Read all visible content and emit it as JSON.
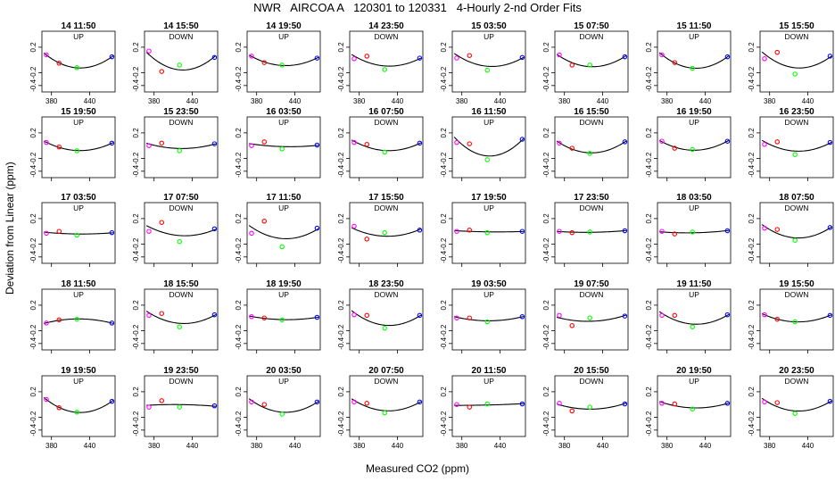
{
  "title": "NWR   AIRCOA A   120301 to 120331   4-Hourly 2-nd Order Fits",
  "xlabel": "Measured CO2 (ppm)",
  "ylabel": "Deviation from Linear (ppm)",
  "colors": {
    "curve": "#000000",
    "point_1": "#ff00ff",
    "point_2": "#ff0000",
    "point_3": "#00ff00",
    "point_4": "#0000ff"
  },
  "chart_data": {
    "type": "scatter",
    "layout": "grid of 5 rows x 8 columns of small panels",
    "xlim": [
      365,
      480
    ],
    "ylim": [
      -0.5,
      0.45
    ],
    "xticks": [
      380,
      440
    ],
    "yticks": [
      -0.4,
      -0.2,
      0.2
    ],
    "ytick_labels": [
      "-0.4",
      "-0.2",
      "0.2"
    ],
    "x_tick_rows": [
      1,
      5
    ],
    "standard_x": [
      372,
      392,
      420,
      475
    ],
    "panels": [
      {
        "title": "14 11:50",
        "dir": "UP",
        "y": [
          0.08,
          -0.05,
          -0.12,
          0.05
        ]
      },
      {
        "title": "14 15:50",
        "dir": "DOWN",
        "y": [
          0.14,
          -0.18,
          -0.08,
          0.04
        ]
      },
      {
        "title": "14 19:50",
        "dir": "UP",
        "y": [
          0.06,
          -0.04,
          -0.08,
          0.03
        ]
      },
      {
        "title": "14 23:50",
        "dir": "DOWN",
        "y": [
          0.02,
          0.06,
          -0.15,
          0.03
        ]
      },
      {
        "title": "15 03:50",
        "dir": "UP",
        "y": [
          0.03,
          0.07,
          -0.16,
          0.04
        ]
      },
      {
        "title": "15 07:50",
        "dir": "DOWN",
        "y": [
          0.08,
          -0.08,
          -0.08,
          0.05
        ]
      },
      {
        "title": "15 11:50",
        "dir": "UP",
        "y": [
          0.08,
          -0.04,
          -0.13,
          0.05
        ]
      },
      {
        "title": "15 15:50",
        "dir": "DOWN",
        "y": [
          0.02,
          0.12,
          -0.22,
          0.06
        ]
      },
      {
        "title": "15 19:50",
        "dir": "UP",
        "y": [
          0.05,
          -0.02,
          -0.08,
          0.04
        ]
      },
      {
        "title": "15 23:50",
        "dir": "DOWN",
        "y": [
          0.0,
          0.04,
          -0.08,
          0.03
        ]
      },
      {
        "title": "16 03:50",
        "dir": "UP",
        "y": [
          0.0,
          0.06,
          -0.05,
          0.01
        ]
      },
      {
        "title": "16 07:50",
        "dir": "DOWN",
        "y": [
          0.05,
          0.02,
          -0.1,
          0.04
        ]
      },
      {
        "title": "16 11:50",
        "dir": "UP",
        "y": [
          0.05,
          0.03,
          -0.22,
          0.1
        ]
      },
      {
        "title": "16 15:50",
        "dir": "DOWN",
        "y": [
          0.04,
          -0.04,
          -0.12,
          0.06
        ]
      },
      {
        "title": "16 19:50",
        "dir": "UP",
        "y": [
          0.07,
          -0.04,
          -0.06,
          0.07
        ]
      },
      {
        "title": "16 23:50",
        "dir": "DOWN",
        "y": [
          0.02,
          0.06,
          -0.14,
          0.05
        ]
      },
      {
        "title": "17 03:50",
        "dir": "UP",
        "y": [
          -0.03,
          0.0,
          -0.06,
          -0.02
        ]
      },
      {
        "title": "17 07:50",
        "dir": "DOWN",
        "y": [
          0.0,
          0.14,
          -0.16,
          0.04
        ]
      },
      {
        "title": "17 11:50",
        "dir": "UP",
        "y": [
          -0.03,
          0.16,
          -0.24,
          0.05
        ]
      },
      {
        "title": "17 15:50",
        "dir": "DOWN",
        "y": [
          0.08,
          -0.12,
          -0.02,
          0.02
        ]
      },
      {
        "title": "17 19:50",
        "dir": "UP",
        "y": [
          0.0,
          0.02,
          -0.02,
          0.0
        ]
      },
      {
        "title": "17 23:50",
        "dir": "DOWN",
        "y": [
          0.0,
          -0.02,
          -0.01,
          0.01
        ]
      },
      {
        "title": "18 03:50",
        "dir": "UP",
        "y": [
          0.0,
          -0.04,
          -0.01,
          0.01
        ]
      },
      {
        "title": "18 07:50",
        "dir": "DOWN",
        "y": [
          0.05,
          0.03,
          -0.14,
          0.06
        ]
      },
      {
        "title": "18 11:50",
        "dir": "UP",
        "y": [
          -0.08,
          -0.03,
          -0.02,
          -0.08
        ]
      },
      {
        "title": "18 15:50",
        "dir": "DOWN",
        "y": [
          0.04,
          0.07,
          -0.14,
          0.05
        ]
      },
      {
        "title": "18 19:50",
        "dir": "UP",
        "y": [
          0.02,
          0.0,
          -0.03,
          0.01
        ]
      },
      {
        "title": "18 23:50",
        "dir": "DOWN",
        "y": [
          0.05,
          0.04,
          -0.16,
          0.04
        ]
      },
      {
        "title": "19 03:50",
        "dir": "UP",
        "y": [
          0.0,
          0.0,
          -0.06,
          0.02
        ]
      },
      {
        "title": "19 07:50",
        "dir": "DOWN",
        "y": [
          0.04,
          -0.12,
          0.0,
          0.03
        ]
      },
      {
        "title": "19 11:50",
        "dir": "UP",
        "y": [
          0.04,
          0.04,
          -0.14,
          0.05
        ]
      },
      {
        "title": "19 15:50",
        "dir": "DOWN",
        "y": [
          0.05,
          -0.02,
          -0.06,
          0.04
        ]
      },
      {
        "title": "19 19:50",
        "dir": "UP",
        "y": [
          0.08,
          -0.05,
          -0.12,
          0.05
        ]
      },
      {
        "title": "19 23:50",
        "dir": "DOWN",
        "y": [
          -0.04,
          0.06,
          -0.04,
          -0.02
        ]
      },
      {
        "title": "20 03:50",
        "dir": "UP",
        "y": [
          0.04,
          0.0,
          -0.15,
          0.04
        ]
      },
      {
        "title": "20 07:50",
        "dir": "DOWN",
        "y": [
          0.04,
          0.02,
          -0.13,
          0.04
        ]
      },
      {
        "title": "20 11:50",
        "dir": "UP",
        "y": [
          0.0,
          -0.04,
          0.01,
          0.01
        ]
      },
      {
        "title": "20 15:50",
        "dir": "DOWN",
        "y": [
          0.02,
          -0.1,
          -0.04,
          0.01
        ]
      },
      {
        "title": "20 19:50",
        "dir": "UP",
        "y": [
          0.02,
          0.01,
          -0.07,
          0.02
        ]
      },
      {
        "title": "20 23:50",
        "dir": "DOWN",
        "y": [
          0.04,
          0.03,
          -0.14,
          0.05
        ]
      }
    ]
  }
}
